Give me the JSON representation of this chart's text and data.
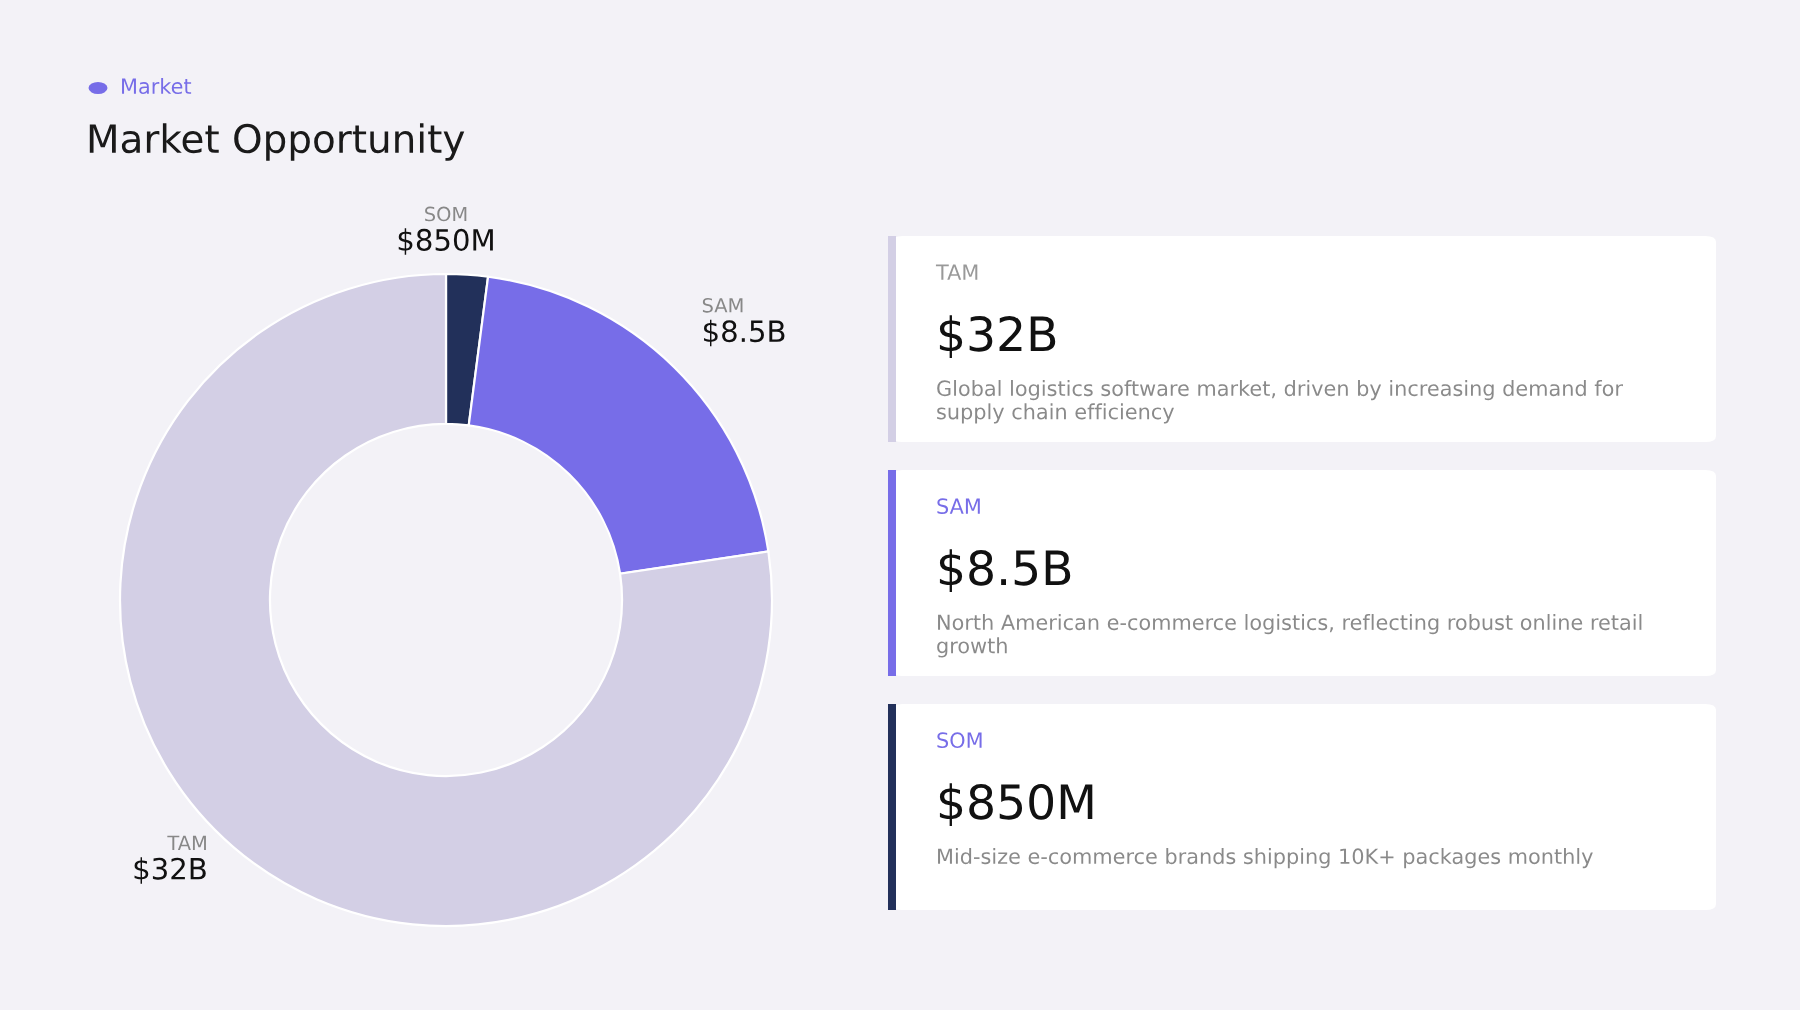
{
  "chart_data": {
    "type": "donut",
    "title": "Market Opportunity",
    "categories": [
      "SOM",
      "SAM",
      "TAM"
    ],
    "series": [
      {
        "name": "Market",
        "color": "#776de8",
        "values": [
          2.06,
          20.56,
          77.38
        ]
      }
    ],
    "colors": [
      "#22305a",
      "#776de8",
      "#d3cfe5"
    ],
    "value_labels": [
      "$850M",
      "$8.5B",
      "$32B"
    ],
    "legend": "top left",
    "annotations": [
      "TAM",
      "$32B",
      "Global logistics software market, driven by increasing demand for supply chain efficiency",
      "SAM",
      "$8.5B",
      "North American e-commerce logistics, reflecting robust online retail growth",
      "SOM",
      "$850M",
      "Mid-size e-commerce brands shipping 10K+ packages monthly"
    ]
  }
}
